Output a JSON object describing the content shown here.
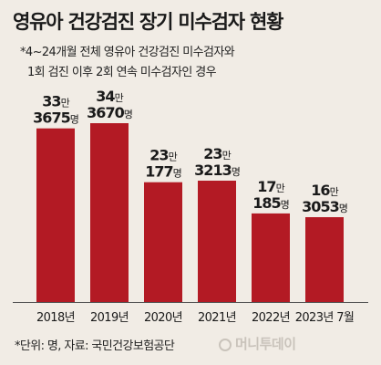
{
  "header": {
    "title": "영유아 건강검진 장기 미수검자 현황",
    "note_line1": "*4~24개월 전체 영유아 건강검진 미수검자와",
    "note_line2": "1회 검진 이후 2회 연속 미수검자인 경우"
  },
  "footer": {
    "unit_source": "*단위: 명, 자료: 국민건강보험공단",
    "watermark": "머니투데이"
  },
  "colors": {
    "bar": "#b31a24",
    "background": "#f1ece5"
  },
  "chart_data": {
    "type": "bar",
    "categories": [
      "2018년",
      "2019년",
      "2020년",
      "2021년",
      "2022년",
      "2023년 7월"
    ],
    "values": [
      333675,
      343670,
      230177,
      233213,
      170185,
      163053
    ],
    "label_top": [
      "33만",
      "34만",
      "23만",
      "23만",
      "17만",
      "16만"
    ],
    "label_bottom": [
      "3675명",
      "3670명",
      "177명",
      "3213명",
      "185명",
      "3053명"
    ],
    "title": "영유아 건강검진 장기 미수검자 현황",
    "xlabel": "",
    "ylabel": "",
    "ylim": [
      0,
      400000
    ],
    "grid": false,
    "legend": "none"
  }
}
